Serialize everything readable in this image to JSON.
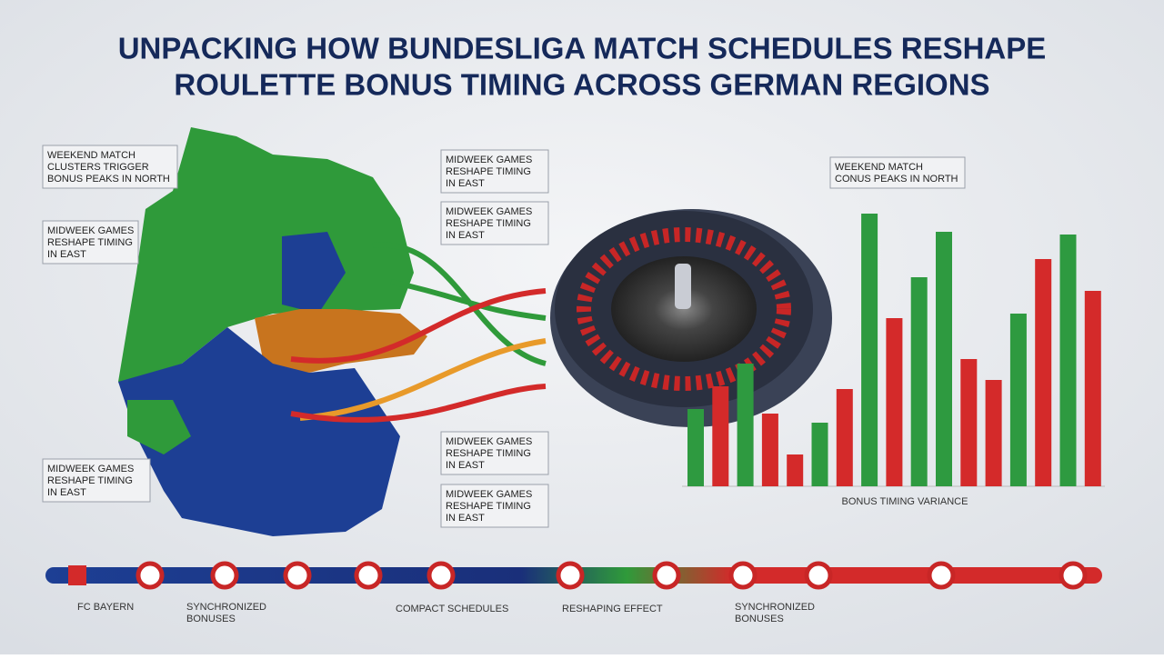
{
  "title": [
    "UNPACKING HOW BUNDESLIGA MATCH SCHEDULES RESHAPE",
    "ROULETTE BONUS TIMING ACROSS GERMAN REGIONS"
  ],
  "callouts": [
    {
      "lines": [
        "WEEKEND MATCH",
        "CLUSTERS TRIGGER",
        "BONUS PEAKS IN NORTH"
      ]
    },
    {
      "lines": [
        "MIDWEEK GAMES",
        "RESHAPE TIMING",
        "IN EAST"
      ]
    },
    {
      "lines": [
        "MIDWEEK GAMES",
        "RESHAPE TIMING",
        "IN EAST"
      ]
    },
    {
      "lines": [
        "MIDWEEK GAMES",
        "RESHAPE TIMING",
        "IN EAST"
      ]
    },
    {
      "lines": [
        "MIDWEEK GAMES",
        "RESHAPE TIMING",
        "IN EAST"
      ]
    },
    {
      "lines": [
        "MIDWEEK GAMES",
        "RESHAPE TIMING",
        "IN EAST"
      ]
    },
    {
      "lines": [
        "MIDWEEK GAMES",
        "RESHAPE TIMING",
        "IN EAST"
      ]
    },
    {
      "lines": [
        "WEEKEND MATCH",
        "CONUS PEAKS IN NORTH"
      ]
    }
  ],
  "chart_data": {
    "type": "bar",
    "label": "BONUS TIMING VARIANCE",
    "values": [
      85,
      110,
      135,
      80,
      35,
      70,
      107,
      300,
      185,
      230,
      280,
      140,
      117,
      190,
      250,
      277,
      215
    ],
    "colors": [
      "#2e9a40",
      "#d42a2a",
      "#2e9a40",
      "#d42a2a",
      "#d42a2a",
      "#2e9a40",
      "#d42a2a",
      "#2e9a40",
      "#d42a2a",
      "#2e9a40",
      "#2e9a40",
      "#d42a2a",
      "#d42a2a",
      "#2e9a40",
      "#d42a2a",
      "#2e9a40",
      "#d42a2a"
    ]
  },
  "timeline": [
    "FC BAYERN",
    "SYNCHRONIZED",
    "BONUSES",
    "COMPACT SCHEDULES",
    "RESHAPING EFFECT",
    "SYNCHRONIZED",
    "BONUSES"
  ]
}
